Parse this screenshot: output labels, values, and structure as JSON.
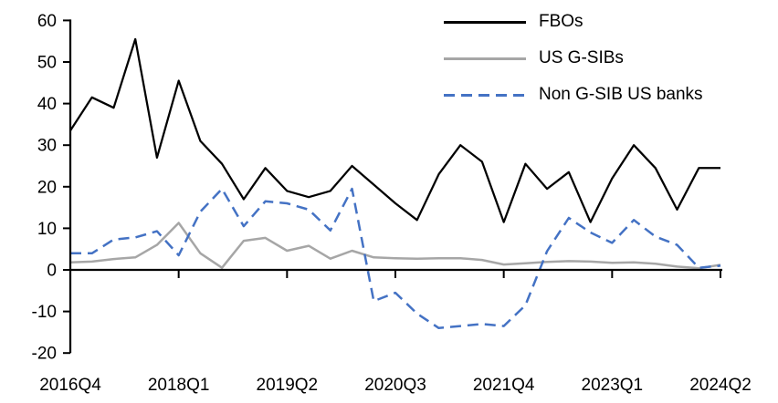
{
  "chart_data": {
    "type": "line",
    "title": "",
    "xlabel": "",
    "ylabel": "",
    "grid": false,
    "legend_position": "top-right",
    "ylim": [
      -20,
      60
    ],
    "y_ticks": [
      60,
      50,
      40,
      30,
      20,
      10,
      0,
      -10,
      -20
    ],
    "x_tick_labels": [
      "2016Q4",
      "2018Q1",
      "2019Q2",
      "2020Q3",
      "2021Q4",
      "2023Q1",
      "2024Q2"
    ],
    "x_categories": [
      "2016Q4",
      "2017Q1",
      "2017Q2",
      "2017Q3",
      "2017Q4",
      "2018Q1",
      "2018Q2",
      "2018Q3",
      "2018Q4",
      "2019Q1",
      "2019Q2",
      "2019Q3",
      "2019Q4",
      "2020Q1",
      "2020Q2",
      "2020Q3",
      "2020Q4",
      "2021Q1",
      "2021Q2",
      "2021Q3",
      "2021Q4",
      "2022Q1",
      "2022Q2",
      "2022Q3",
      "2022Q4",
      "2023Q1",
      "2023Q2",
      "2023Q3",
      "2023Q4",
      "2024Q1",
      "2024Q2"
    ],
    "series": [
      {
        "name": "FBOs",
        "color": "#000000",
        "style": "solid",
        "values": [
          33.5,
          41.5,
          39,
          55.5,
          27,
          45.5,
          31,
          25.5,
          17,
          24.5,
          19,
          17.5,
          19,
          25,
          20.5,
          16,
          12,
          23,
          30,
          26,
          11.5,
          25.5,
          19.5,
          23.5,
          11.5,
          22,
          30,
          24.5,
          14.5,
          24.5,
          24.5
        ]
      },
      {
        "name": "US G-SIBs",
        "color": "#a6a6a6",
        "style": "solid",
        "values": [
          1.8,
          2.0,
          2.6,
          3.0,
          6.0,
          11.3,
          4.0,
          0.5,
          7.0,
          7.7,
          4.6,
          5.8,
          2.7,
          4.6,
          3.0,
          2.8,
          2.7,
          2.8,
          2.8,
          2.4,
          1.3,
          1.6,
          1.9,
          2.1,
          2.0,
          1.7,
          1.8,
          1.5,
          0.8,
          0.4,
          1.2
        ]
      },
      {
        "name": "Non G-SIB US banks",
        "color": "#4472c4",
        "style": "dashed",
        "values": [
          4,
          4,
          7.3,
          7.8,
          9.3,
          3.5,
          14,
          19.5,
          10.5,
          16.5,
          16,
          14.5,
          9.5,
          19.5,
          -7.5,
          -5.5,
          -10.5,
          -14,
          -13.5,
          -13,
          -13.5,
          -8.5,
          4.5,
          12.5,
          9,
          6.5,
          12,
          8,
          6,
          0.5,
          1
        ]
      }
    ]
  }
}
